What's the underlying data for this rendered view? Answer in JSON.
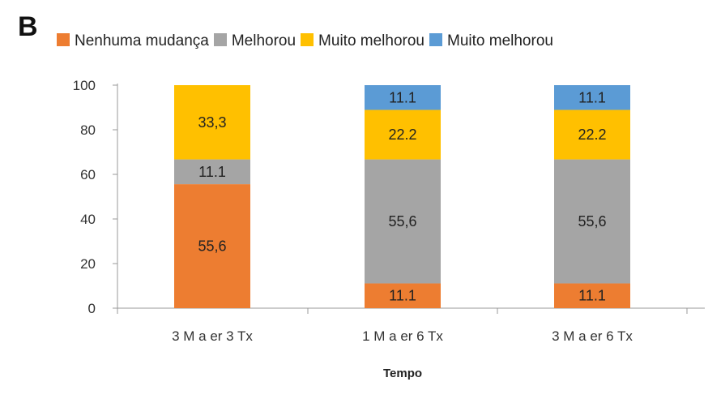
{
  "panel_label": "B",
  "chart_data": {
    "type": "bar",
    "stacked": true,
    "categories": [
      "3 M a er 3 Tx",
      "1 M a er 6 Tx",
      "3 M a er 6 Tx"
    ],
    "series": [
      {
        "name": "Nenhuma mudança",
        "color": "#ED7D31",
        "values": [
          55.6,
          11.1,
          11.1
        ],
        "labels": [
          "55,6",
          "11.1",
          "11.1"
        ]
      },
      {
        "name": "Melhorou",
        "color": "#A5A5A5",
        "values": [
          11.1,
          55.6,
          55.6
        ],
        "labels": [
          "11.1",
          "55,6",
          "55,6"
        ]
      },
      {
        "name": "Muito melhorou",
        "color": "#FFC000",
        "values": [
          33.3,
          22.2,
          22.2
        ],
        "labels": [
          "33,3",
          "22.2",
          "22.2"
        ]
      },
      {
        "name": "Muito melhorou",
        "color": "#5B9BD5",
        "values": [
          0,
          11.1,
          11.1
        ],
        "labels": [
          "",
          "11.1",
          "11.1"
        ]
      }
    ],
    "ylim": [
      0,
      100
    ],
    "yticks": [
      0,
      20,
      40,
      60,
      80,
      100
    ],
    "xlabel": "Tempo",
    "ylabel": "",
    "grid": false,
    "legend": "top"
  }
}
